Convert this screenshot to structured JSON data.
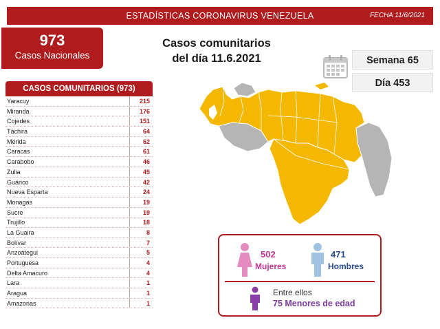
{
  "header": {
    "title": "ESTADÍSTICAS CORONAVIRUS VENEZUELA",
    "date": "FECHA 11/6/2021"
  },
  "national": {
    "count": "973",
    "label": "Casos Nacionales"
  },
  "main_title": {
    "line1": "Casos comunitarios",
    "line2": "del día 11.6.2021"
  },
  "week": "Semana 65",
  "day": "Día 453",
  "table": {
    "header": "CASOS COMUNITARIOS (973)",
    "rows": [
      {
        "name": "Yaracuy",
        "value": "215"
      },
      {
        "name": "Miranda",
        "value": "176"
      },
      {
        "name": "Cojedes",
        "value": "151"
      },
      {
        "name": "Táchira",
        "value": "64"
      },
      {
        "name": "Mérida",
        "value": "62"
      },
      {
        "name": "Caracas",
        "value": "61"
      },
      {
        "name": "Carabobo",
        "value": "46"
      },
      {
        "name": "Zulia",
        "value": "45"
      },
      {
        "name": "Guárico",
        "value": "42"
      },
      {
        "name": "Nueva Esparta",
        "value": "24"
      },
      {
        "name": "Monagas",
        "value": "19"
      },
      {
        "name": "Sucre",
        "value": "19"
      },
      {
        "name": "Trujillo",
        "value": "18"
      },
      {
        "name": "La Guaira",
        "value": "8"
      },
      {
        "name": "Bolívar",
        "value": "7"
      },
      {
        "name": "Anzoátegui",
        "value": "5"
      },
      {
        "name": "Portuguesa",
        "value": "4"
      },
      {
        "name": "Delta Amacuro",
        "value": "4"
      },
      {
        "name": "Lara",
        "value": "1"
      },
      {
        "name": "Aragua",
        "value": "1"
      },
      {
        "name": "Amazonas",
        "value": "1"
      }
    ]
  },
  "stats": {
    "women_count": "502",
    "women_label": "Mujeres",
    "men_count": "471",
    "men_label": "Hombres",
    "minors_intro": "Entre ellos",
    "minors_count": "75",
    "minors_label": "Menores de edad"
  },
  "colors": {
    "brand_red": "#b01b1e",
    "map_affected": "#f5b800",
    "map_unaffected": "#b5b5b5",
    "women": "#e58bc0",
    "men": "#9fc3e0",
    "minors": "#8a3ea8"
  },
  "icons": [
    "calendar-icon",
    "woman-icon",
    "man-icon",
    "child-icon"
  ]
}
